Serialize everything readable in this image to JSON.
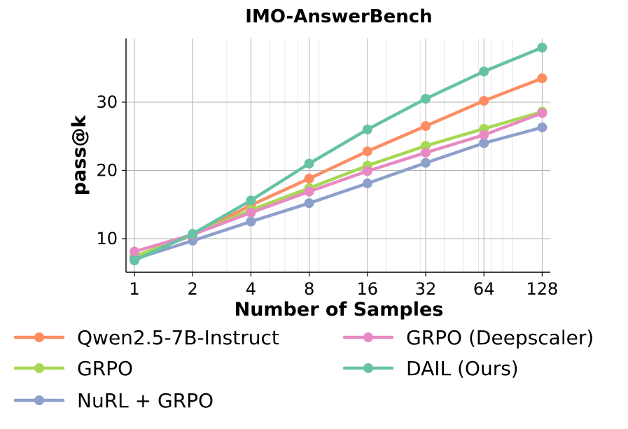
{
  "chart_data": {
    "type": "line",
    "title": "IMO-AnswerBench",
    "xlabel": "Number of Samples",
    "ylabel": "pass@k",
    "x_scale": "log2",
    "x": [
      1,
      2,
      4,
      8,
      16,
      32,
      64,
      128
    ],
    "x_tick_labels": [
      "1",
      "2",
      "4",
      "8",
      "16",
      "32",
      "64",
      "128"
    ],
    "y_ticks": [
      10,
      20,
      30
    ],
    "y_tick_labels": [
      "10",
      "20",
      "30"
    ],
    "ylim": [
      5,
      40
    ],
    "grid": true,
    "legend_position": "bottom",
    "series": [
      {
        "name": "Qwen2.5-7B-Instruct",
        "color": "#fc8d62",
        "values": [
          7.3,
          10.5,
          14.9,
          18.8,
          22.8,
          26.5,
          30.2,
          33.5
        ]
      },
      {
        "name": "GRPO",
        "color": "#a6d854",
        "values": [
          7.4,
          10.6,
          14.2,
          17.4,
          20.7,
          23.6,
          26.1,
          28.6
        ]
      },
      {
        "name": "NuRL + GRPO",
        "color": "#8da0cb",
        "values": [
          7.0,
          9.7,
          12.5,
          15.2,
          18.1,
          21.1,
          24.0,
          26.3
        ]
      },
      {
        "name": "GRPO (Deepscaler)",
        "color": "#e78ac3",
        "values": [
          8.1,
          10.6,
          13.8,
          16.9,
          19.9,
          22.6,
          25.2,
          28.4
        ]
      },
      {
        "name": "DAIL (Ours)",
        "color": "#66c2a5",
        "values": [
          6.8,
          10.7,
          15.6,
          21.0,
          26.0,
          30.5,
          34.5,
          38.0
        ]
      }
    ]
  }
}
